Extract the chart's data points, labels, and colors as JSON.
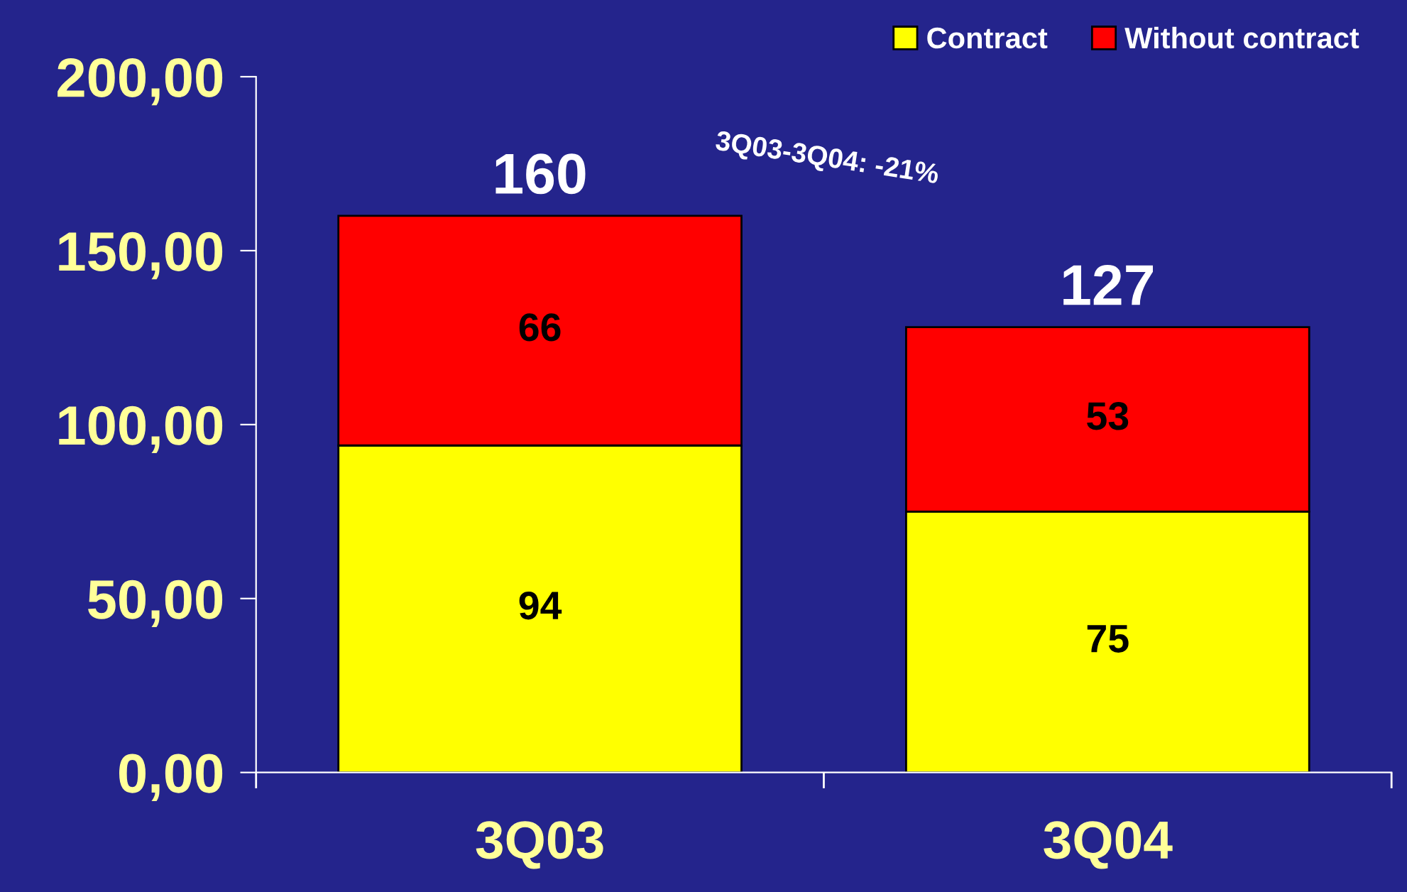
{
  "chart_data": {
    "type": "bar",
    "stacked": true,
    "categories": [
      "3Q03",
      "3Q04"
    ],
    "series": [
      {
        "name": "Contract",
        "color": "#ffff00",
        "values": [
          94,
          75
        ]
      },
      {
        "name": "Without contract",
        "color": "#ff0000",
        "values": [
          66,
          53
        ]
      }
    ],
    "ylim": [
      0,
      200
    ],
    "yticks": [
      {
        "value": 0,
        "label": "0,00"
      },
      {
        "value": 50,
        "label": "50,00"
      },
      {
        "value": 100,
        "label": "100,00"
      },
      {
        "value": 150,
        "label": "150,00"
      },
      {
        "value": 200,
        "label": "200,00"
      }
    ],
    "data_labels": true,
    "totals": [
      "160",
      "127"
    ],
    "annotations": [
      "3Q03-3Q04: -21%"
    ],
    "legend": "top right",
    "grid": false
  }
}
